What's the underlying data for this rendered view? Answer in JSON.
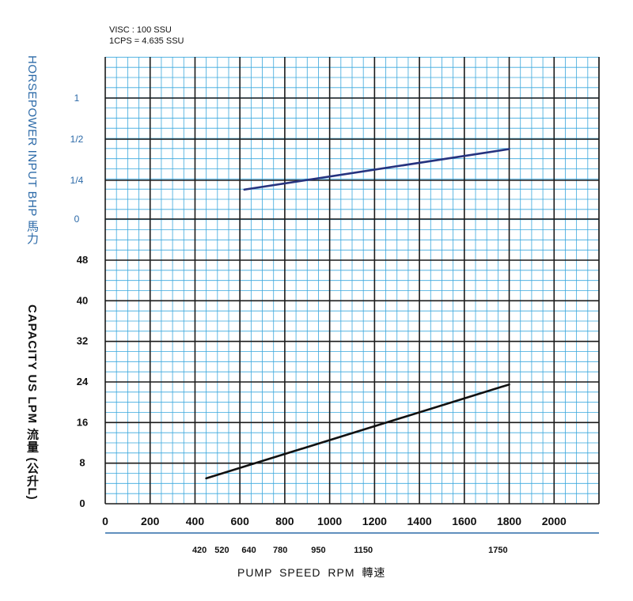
{
  "notes": {
    "visc": "VISC : 100 SSU",
    "cps": "1CPS = 4.635 SSU"
  },
  "axes": {
    "hp_title": "HORSEPOWER INPUT BHP 馬力",
    "capacity_title": "CAPACITY US LPM 流量 (公升L)",
    "x_title": "PUMP SPEED RPM 轉速"
  },
  "colors": {
    "grid_minor": "#39a7dd",
    "grid_major": "#1a1a1a",
    "hp_line": "#26337f",
    "capacity_line": "#111111",
    "hp_label": "#2c6aa8",
    "axis_rule": "#2c6aa8"
  },
  "chart_data": [
    {
      "type": "line",
      "name": "horsepower",
      "xlim": [
        0,
        2200
      ],
      "ylim": [
        0,
        1
      ],
      "ytick_labels": [
        "0",
        "1/4",
        "1/2",
        "1"
      ],
      "series": [
        {
          "x": [
            620,
            1800
          ],
          "y": [
            0.19,
            0.44
          ]
        }
      ]
    },
    {
      "type": "line",
      "name": "capacity",
      "xlim": [
        0,
        2200
      ],
      "ylim": [
        0,
        56
      ],
      "xticks": [
        0,
        200,
        400,
        600,
        800,
        1000,
        1200,
        1400,
        1600,
        1800,
        2000
      ],
      "secondary_xticks": [
        420,
        520,
        640,
        780,
        950,
        1150,
        1750
      ],
      "yticks": [
        0,
        8,
        16,
        24,
        32,
        40,
        48
      ],
      "grid": true,
      "series": [
        {
          "x": [
            450,
            1800
          ],
          "y": [
            5,
            23.5
          ]
        }
      ]
    }
  ]
}
